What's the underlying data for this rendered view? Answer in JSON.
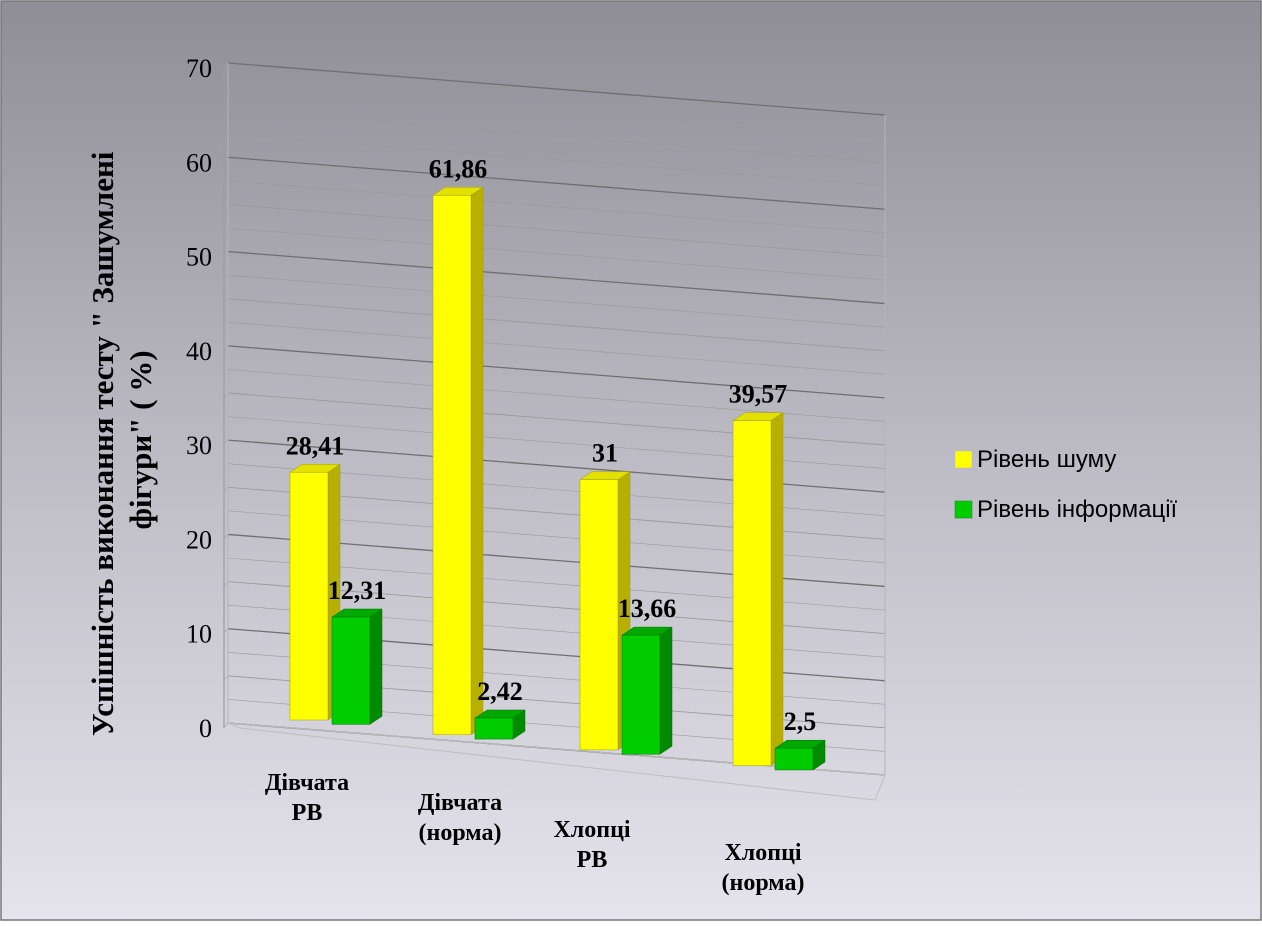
{
  "chart_data": {
    "type": "bar",
    "title": "",
    "xlabel": "",
    "ylabel": "Успішність виконання тесту \" Зашумлені фігури\" ( %)",
    "ylabel_lines": [
      "Успішність виконання тесту \" Зашумлені",
      "фігури\" ( %)"
    ],
    "ylim": [
      0,
      70
    ],
    "yticks": [
      "0",
      "10",
      "20",
      "30",
      "40",
      "50",
      "60",
      "70"
    ],
    "categories": [
      [
        "Дівчата",
        "РВ"
      ],
      [
        "Дівчата",
        "(норма)"
      ],
      [
        "Хлопці",
        "РВ"
      ],
      [
        "Хлопці",
        "(норма)"
      ]
    ],
    "series": [
      {
        "name": "Рівень шуму",
        "values": [
          28.41,
          61.86,
          31,
          39.57
        ],
        "labels": [
          "28,41",
          "61,86",
          "31",
          "39,57"
        ],
        "color": "#FFFF00"
      },
      {
        "name": "Рівень інформації",
        "values": [
          12.31,
          2.42,
          13.66,
          2.5
        ],
        "labels": [
          "12,31",
          "2,42",
          "13,66",
          "2,5"
        ],
        "color": "#00CC00"
      }
    ],
    "legend": "right",
    "grid": true
  }
}
